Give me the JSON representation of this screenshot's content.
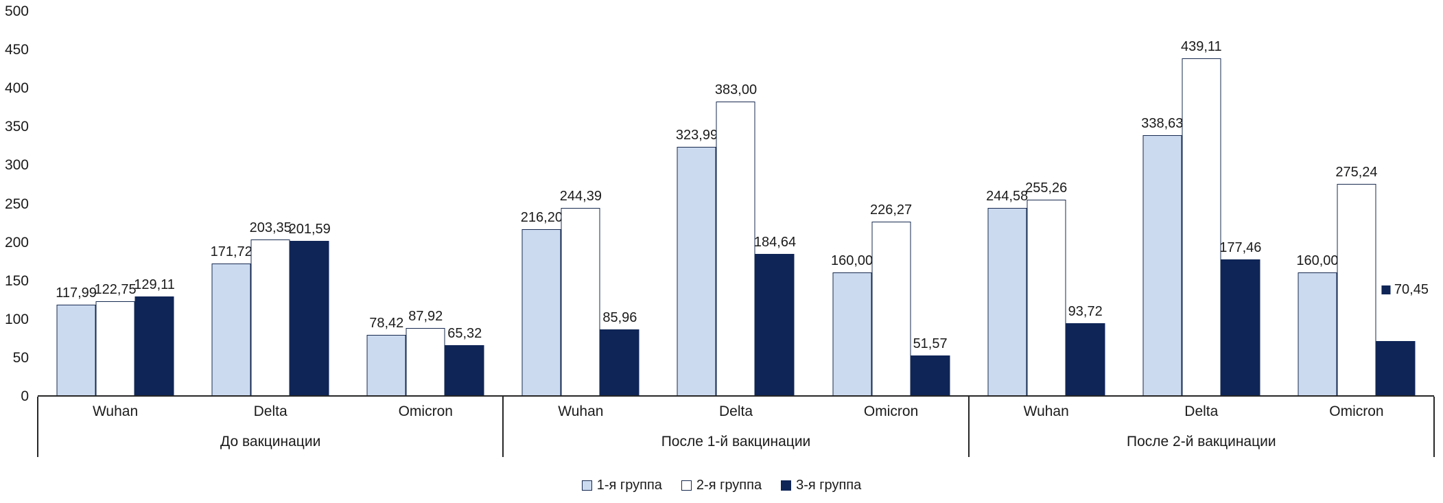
{
  "chart_data": {
    "type": "bar",
    "title": "",
    "grid": false,
    "y_axis": {
      "min": 0,
      "max": 500,
      "step": 50,
      "ticks": [
        0,
        50,
        100,
        150,
        200,
        250,
        300,
        350,
        400,
        450,
        500
      ]
    },
    "number_format": {
      "decimals": 2,
      "decimal_separator": ","
    },
    "series": [
      {
        "name": "1-я группа",
        "fill": "#cbdaef",
        "border": "#16294f"
      },
      {
        "name": "2-я группа",
        "fill": "#ffffff",
        "border": "#16294f"
      },
      {
        "name": "3-я группа",
        "fill": "#0f2557",
        "border": "#0f2557"
      }
    ],
    "panels": [
      {
        "label": "До вакцинации",
        "groups": [
          {
            "category": "Wuhan",
            "values": [
              117.99,
              122.75,
              129.11
            ]
          },
          {
            "category": "Delta",
            "values": [
              171.72,
              203.35,
              201.59
            ]
          },
          {
            "category": "Omicron",
            "values": [
              78.42,
              87.92,
              65.32
            ]
          }
        ]
      },
      {
        "label": "После 1-й вакцинации",
        "groups": [
          {
            "category": "Wuhan",
            "values": [
              216.2,
              244.39,
              85.96
            ]
          },
          {
            "category": "Delta",
            "values": [
              323.99,
              383.0,
              184.64
            ]
          },
          {
            "category": "Omicron",
            "values": [
              160.0,
              226.27,
              51.57
            ]
          }
        ]
      },
      {
        "label": "После 2-й вакцинации",
        "groups": [
          {
            "category": "Wuhan",
            "values": [
              244.58,
              255.26,
              93.72
            ]
          },
          {
            "category": "Delta",
            "values": [
              338.63,
              439.11,
              177.46
            ]
          },
          {
            "category": "Omicron",
            "values": [
              160.0,
              275.24,
              70.45
            ],
            "label_overrides": [
              {
                "series": 2,
                "legend_key": true,
                "label_at_value": 197,
                "dx": 14
              }
            ]
          }
        ]
      }
    ],
    "legend": {
      "position": "bottom",
      "items": [
        "1-я группа",
        "2-я группа",
        "3-я группа"
      ]
    }
  }
}
